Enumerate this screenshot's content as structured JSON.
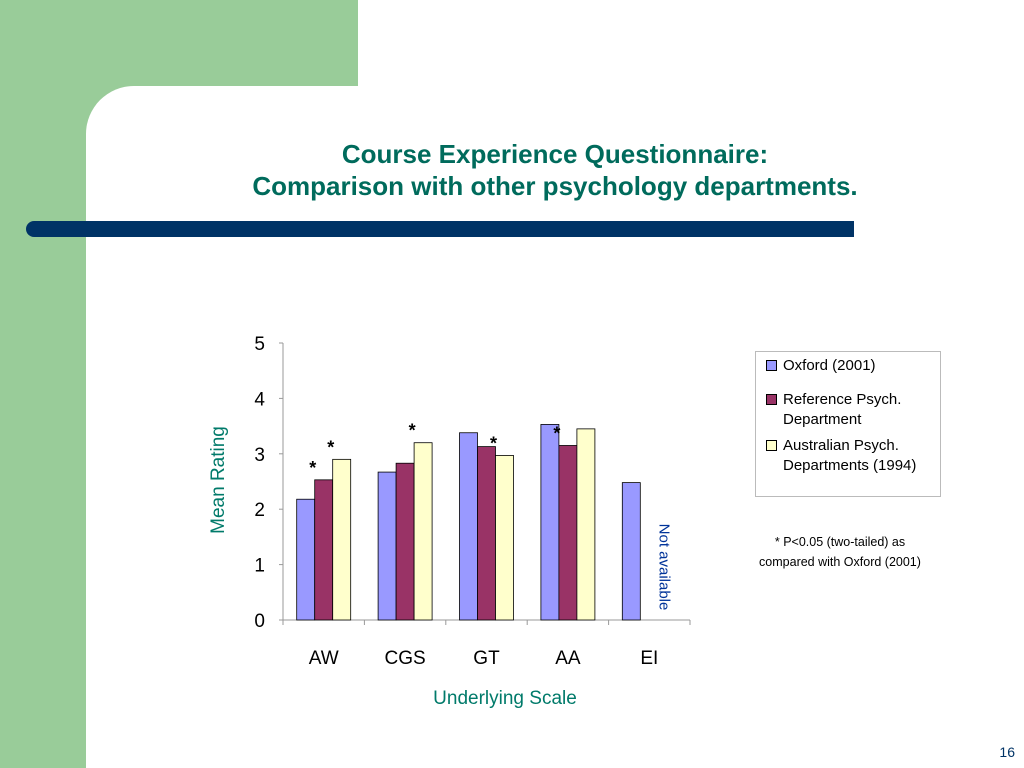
{
  "title_line1": "Course Experience Questionnaire:",
  "title_line2": "Comparison with other psychology departments.",
  "page_number": "16",
  "note_line1": "* P<0.05 (two-tailed) as",
  "note_line2": "compared with Oxford (2001)",
  "not_available": "Not available",
  "colors": {
    "background_green": "#99cc99",
    "title": "#006b5c",
    "rule": "#003366",
    "series": [
      "#9999ff",
      "#993366",
      "#ffffcc"
    ]
  },
  "chart_data": {
    "type": "bar",
    "xlabel": "Underlying Scale",
    "ylabel": "Mean Rating",
    "ylim": [
      0,
      5
    ],
    "yticks": [
      "0",
      "1",
      "2",
      "3",
      "4",
      "5"
    ],
    "categories": [
      "AW",
      "CGS",
      "GT",
      "AA",
      "EI"
    ],
    "series": [
      {
        "name": "Oxford (2001)",
        "values": [
          2.18,
          2.67,
          3.38,
          3.53,
          2.48
        ]
      },
      {
        "name": "Reference Psych. Department",
        "values": [
          2.53,
          2.83,
          3.13,
          3.15,
          null
        ]
      },
      {
        "name": "Australian Psych. Departments (1994)",
        "values": [
          2.9,
          3.2,
          2.97,
          3.45,
          null
        ]
      }
    ],
    "significance": [
      {
        "category": "AW",
        "series": 1,
        "label": "*"
      },
      {
        "category": "AW",
        "series": 2,
        "label": "*"
      },
      {
        "category": "CGS",
        "series": 2,
        "label": "*"
      },
      {
        "category": "GT",
        "series": 2,
        "label": "*"
      },
      {
        "category": "AA",
        "series": 1,
        "label": "*"
      }
    ],
    "legend_position": "right",
    "grid": false
  }
}
